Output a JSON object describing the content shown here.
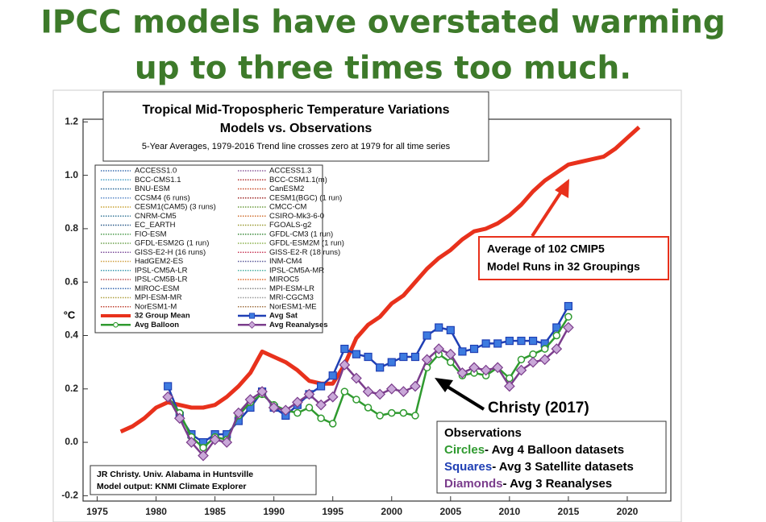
{
  "headline": [
    "IPCC models have overstated warming",
    "up to three times too much."
  ],
  "chart_data": {
    "type": "line",
    "title": [
      "Tropical Mid-Tropospheric Temperature Variations",
      "Models vs. Observations",
      "5-Year Averages, 1979-2016 Trend line crosses zero at 1979 for all time series"
    ],
    "y_label": "°C",
    "xlim": [
      1973.8,
      2023.7
    ],
    "ylim": [
      -0.22,
      1.21
    ],
    "xticks": [
      1975,
      1980,
      1985,
      1990,
      1995,
      2000,
      2005,
      2010,
      2015,
      2020
    ],
    "yticks": [
      -0.2,
      {
        "value": 0,
        "label": "0.0"
      },
      0.2,
      0.4,
      0.6,
      0.8,
      {
        "value": 1,
        "label": "1.0"
      },
      1.2
    ],
    "x": [
      1977,
      1978,
      1979,
      1980,
      1981,
      1982,
      1983,
      1984,
      1985,
      1986,
      1987,
      1988,
      1989,
      1990,
      1991,
      1992,
      1993,
      1994,
      1995,
      1996,
      1997,
      1998,
      1999,
      2000,
      2001,
      2002,
      2003,
      2004,
      2005,
      2006,
      2007,
      2008,
      2009,
      2010,
      2011,
      2012,
      2013,
      2014,
      2015,
      2016,
      2017,
      2018,
      2019,
      2020,
      2021
    ],
    "series": [
      {
        "name": "32 Group Mean",
        "color": "#e8311c",
        "marker": "none",
        "width": 5,
        "values": [
          0.04,
          0.06,
          0.09,
          0.13,
          0.15,
          0.14,
          0.13,
          0.13,
          0.14,
          0.17,
          0.21,
          0.26,
          0.34,
          0.32,
          0.3,
          0.27,
          0.23,
          0.22,
          0.22,
          0.29,
          0.39,
          0.44,
          0.47,
          0.52,
          0.55,
          0.6,
          0.65,
          0.69,
          0.72,
          0.76,
          0.79,
          0.8,
          0.82,
          0.85,
          0.89,
          0.94,
          0.98,
          1.01,
          1.04,
          1.05,
          1.06,
          1.07,
          1.1,
          1.14,
          1.18
        ]
      },
      {
        "name": "Avg Sat",
        "color": "#1f3fb4",
        "marker": "square",
        "width": 2.5,
        "values": [
          null,
          null,
          null,
          null,
          0.21,
          0.1,
          0.03,
          0.0,
          0.03,
          0.03,
          0.08,
          0.13,
          0.19,
          0.13,
          0.1,
          0.14,
          0.18,
          0.21,
          0.25,
          0.35,
          0.33,
          0.32,
          0.28,
          0.3,
          0.32,
          0.32,
          0.4,
          0.43,
          0.42,
          0.34,
          0.35,
          0.37,
          0.37,
          0.38,
          0.38,
          0.38,
          0.37,
          0.43,
          0.51,
          null,
          null,
          null,
          null,
          null,
          null
        ]
      },
      {
        "name": "Avg Balloon",
        "color": "#2f9a2f",
        "marker": "circle",
        "width": 2.5,
        "values": [
          null,
          null,
          null,
          null,
          0.17,
          0.11,
          0.02,
          -0.02,
          0.02,
          0.01,
          0.1,
          0.15,
          0.18,
          0.14,
          0.12,
          0.11,
          0.13,
          0.09,
          0.07,
          0.19,
          0.16,
          0.13,
          0.1,
          0.11,
          0.11,
          0.1,
          0.28,
          0.33,
          0.3,
          0.25,
          0.26,
          0.25,
          0.28,
          0.24,
          0.31,
          0.33,
          0.35,
          0.4,
          0.47,
          null,
          null,
          null,
          null,
          null,
          null
        ]
      },
      {
        "name": "Avg Reanalyses",
        "color": "#7b3d8c",
        "marker": "diamond",
        "width": 2.5,
        "values": [
          null,
          null,
          null,
          null,
          0.17,
          0.09,
          0.0,
          -0.05,
          0.01,
          0.0,
          0.11,
          0.16,
          0.19,
          0.13,
          0.12,
          0.15,
          0.18,
          0.14,
          0.17,
          0.29,
          0.24,
          0.19,
          0.18,
          0.2,
          0.19,
          0.21,
          0.31,
          0.35,
          0.33,
          0.26,
          0.28,
          0.27,
          0.28,
          0.21,
          0.27,
          0.3,
          0.31,
          0.35,
          0.43,
          null,
          null,
          null,
          null,
          null,
          null
        ]
      }
    ],
    "models": [
      {
        "name": "ACCESS1.0",
        "color": "#3c6fb0"
      },
      {
        "name": "ACCESS1.3",
        "color": "#8a5a9a"
      },
      {
        "name": "BCC-CMS1.1",
        "color": "#4aa0c8"
      },
      {
        "name": "BCC-CSM1.1(m)",
        "color": "#b03030"
      },
      {
        "name": "BNU-ESM",
        "color": "#2a6a9a"
      },
      {
        "name": "CanESM2",
        "color": "#c84a2a"
      },
      {
        "name": "CCSM4 (6 runs)",
        "color": "#5a8ac8"
      },
      {
        "name": "CESM1(BGC) (1 run)",
        "color": "#a02a2a"
      },
      {
        "name": "CESM1(CAM5) (3 runs)",
        "color": "#c8a030"
      },
      {
        "name": "CMCC-CM",
        "color": "#6a9a3a"
      },
      {
        "name": "CNRM-CM5",
        "color": "#3a7a9a"
      },
      {
        "name": "CSIRO-Mk3-6-0",
        "color": "#d07030"
      },
      {
        "name": "EC_EARTH",
        "color": "#2a5a8a"
      },
      {
        "name": "FGOALS-g2",
        "color": "#9a9a30"
      },
      {
        "name": "FIO-ESM",
        "color": "#4a9a4a"
      },
      {
        "name": "GFDL-CM3 (1 run)",
        "color": "#3a8a3a"
      },
      {
        "name": "GFDL-ESM2G (1 run)",
        "color": "#6aa04a"
      },
      {
        "name": "GFDL-ESM2M (1 run)",
        "color": "#8ab04a"
      },
      {
        "name": "GISS-E2-H (16 runs)",
        "color": "#7a4a9a"
      },
      {
        "name": "GISS-E2-R (18 runs)",
        "color": "#c83a5a"
      },
      {
        "name": "HadGEM2-ES",
        "color": "#d0a040"
      },
      {
        "name": "INM-CM4",
        "color": "#5a5a9a"
      },
      {
        "name": "IPSL-CM5A-LR",
        "color": "#3a9ab0"
      },
      {
        "name": "IPSL-CM5A-MR",
        "color": "#4ab0a0"
      },
      {
        "name": "IPSL-CM5B-LR",
        "color": "#c05050"
      },
      {
        "name": "MIROC5",
        "color": "#e06a2a"
      },
      {
        "name": "MIROC-ESM",
        "color": "#3a6ab0"
      },
      {
        "name": "MPI-ESM-LR",
        "color": "#8a8a8a"
      },
      {
        "name": "MPI-ESM-MR",
        "color": "#b0a040"
      },
      {
        "name": "MRI-CGCM3",
        "color": "#9a9a9a"
      },
      {
        "name": "NorESM1-M",
        "color": "#c04030"
      },
      {
        "name": "NorESM1-ME",
        "color": "#a07040"
      }
    ],
    "annotations": {
      "model_average": [
        "Average of 102 CMIP5",
        "Model Runs in 32 Groupings"
      ],
      "christy": "Christy (2017)",
      "observations": {
        "title": "Observations",
        "lines": [
          [
            "Circles",
            "- Avg 4 Balloon datasets"
          ],
          [
            "Squares",
            "- Avg 3 Satellite datasets"
          ],
          [
            "Diamonds",
            "- Avg 3 Reanalyses"
          ]
        ]
      },
      "credit": [
        "JR Christy. Univ. Alabama in Huntsville",
        "Model output: KNMI Climate Explorer"
      ]
    }
  }
}
